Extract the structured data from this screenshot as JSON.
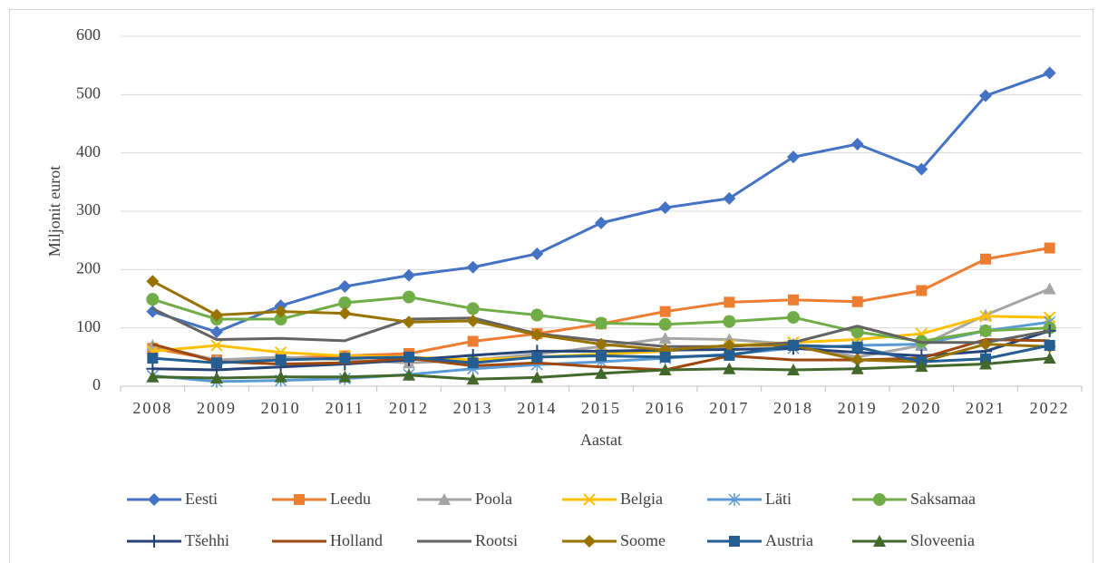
{
  "chart_data": {
    "type": "line",
    "y_label": "Miljonit eurot",
    "x_label": "Aastat",
    "categories": [
      "2008",
      "2009",
      "2010",
      "2011",
      "2012",
      "2013",
      "2014",
      "2015",
      "2016",
      "2017",
      "2018",
      "2019",
      "2020",
      "2021",
      "2022"
    ],
    "ylim": [
      0,
      600
    ],
    "yticks": [
      0,
      100,
      200,
      300,
      400,
      500,
      600
    ],
    "grid": true,
    "legend": "bottom",
    "series": [
      {
        "name": "Eesti",
        "color": "#4472c4",
        "marker": "diamond",
        "values": [
          128,
          93,
          138,
          171,
          190,
          204,
          227,
          280,
          306,
          322,
          393,
          415,
          372,
          498,
          537
        ]
      },
      {
        "name": "Leedu",
        "color": "#ed7d31",
        "marker": "square",
        "values": [
          65,
          45,
          48,
          52,
          56,
          77,
          90,
          107,
          128,
          144,
          148,
          145,
          164,
          218,
          237
        ]
      },
      {
        "name": "Poola",
        "color": "#a5a5a5",
        "marker": "triangle",
        "values": [
          70,
          45,
          50,
          45,
          40,
          45,
          55,
          68,
          82,
          80,
          72,
          50,
          70,
          122,
          167
        ]
      },
      {
        "name": "Belgia",
        "color": "#ffc000",
        "marker": "x",
        "values": [
          60,
          70,
          58,
          52,
          50,
          45,
          50,
          55,
          60,
          70,
          75,
          80,
          90,
          120,
          118
        ]
      },
      {
        "name": "Läti",
        "color": "#5b9bd5",
        "marker": "star",
        "values": [
          18,
          8,
          10,
          13,
          20,
          30,
          37,
          42,
          48,
          55,
          65,
          70,
          72,
          95,
          110
        ]
      },
      {
        "name": "Saksamaa",
        "color": "#70ad47",
        "marker": "circle",
        "values": [
          149,
          115,
          115,
          143,
          153,
          133,
          122,
          108,
          106,
          111,
          118,
          93,
          77,
          95,
          100
        ]
      },
      {
        "name": "Tšehhi",
        "color": "#264478",
        "marker": "plus",
        "values": [
          30,
          28,
          33,
          38,
          45,
          53,
          60,
          60,
          62,
          63,
          65,
          58,
          52,
          60,
          95
        ]
      },
      {
        "name": "Holland",
        "color": "#9e480e",
        "marker": "none",
        "values": [
          72,
          42,
          38,
          40,
          48,
          35,
          40,
          33,
          28,
          52,
          45,
          45,
          48,
          80,
          78
        ]
      },
      {
        "name": "Rootsi",
        "color": "#636363",
        "marker": "none",
        "values": [
          133,
          80,
          82,
          78,
          115,
          117,
          90,
          78,
          68,
          68,
          75,
          103,
          75,
          75,
          95
        ]
      },
      {
        "name": "Soome",
        "color": "#997300",
        "marker": "diamond",
        "values": [
          180,
          122,
          128,
          125,
          110,
          112,
          88,
          72,
          62,
          70,
          70,
          45,
          42,
          72,
          68
        ]
      },
      {
        "name": "Austria",
        "color": "#255e91",
        "marker": "square",
        "values": [
          48,
          40,
          45,
          48,
          50,
          40,
          50,
          52,
          50,
          53,
          70,
          67,
          42,
          47,
          70
        ]
      },
      {
        "name": "Sloveenia",
        "color": "#43682b",
        "marker": "triangle",
        "values": [
          16,
          14,
          16,
          16,
          19,
          12,
          15,
          22,
          28,
          30,
          28,
          30,
          34,
          38,
          48
        ]
      }
    ]
  }
}
